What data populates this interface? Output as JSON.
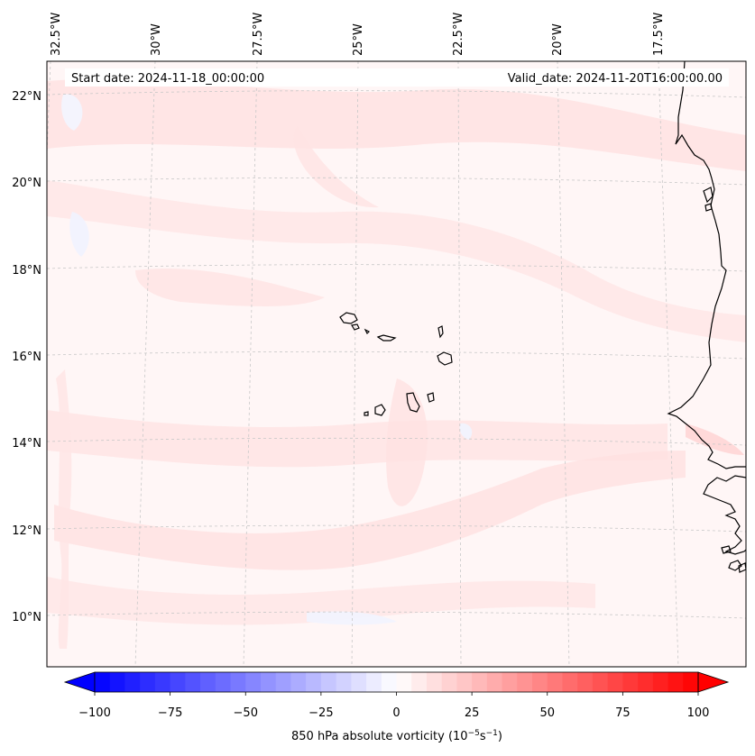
{
  "map": {
    "start_date_text": "Start date: 2024-11-18_00:00:00",
    "valid_date_text": "Valid_date: 2024-11-20T16:00:00.00",
    "lon_labels": [
      "32.5°W",
      "30°W",
      "27.5°W",
      "25°W",
      "22.5°W",
      "20°W",
      "17.5°W"
    ],
    "lat_labels": [
      "22°N",
      "20°N",
      "18°N",
      "16°N",
      "14°N",
      "12°N",
      "10°N"
    ],
    "coastline_color": "#000000",
    "gridline_color": "#c8c8c8"
  },
  "colorbar": {
    "ticks": [
      "−100",
      "−75",
      "−50",
      "−25",
      "0",
      "25",
      "50",
      "75",
      "100"
    ],
    "min": -100,
    "max": 100,
    "extend": "both",
    "cmap": "bwr",
    "label": "850 hPa absolute vorticity (10",
    "label_exp1": "−5",
    "label_mid": "s",
    "label_exp2": "−1",
    "label_end": ")"
  }
}
